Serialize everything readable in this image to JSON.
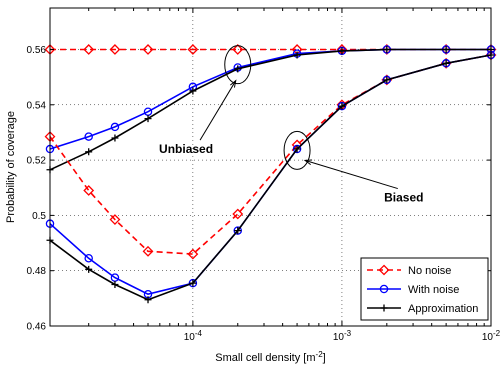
{
  "chart_data": {
    "type": "line",
    "xlabel_main": "Small cell density [m",
    "xlabel_sup": "-2",
    "xlabel_end": "]",
    "ylabel": "Probability of coverage",
    "xscale": "log",
    "xlim": [
      1.1e-05,
      0.01
    ],
    "ylim": [
      0.46,
      0.575
    ],
    "grid": true,
    "legend_position": "bottom-right",
    "y_ticks": [
      "0.46",
      "0.48",
      "0.5",
      "0.52",
      "0.54",
      "0.56"
    ],
    "y_tick_values": [
      0.46,
      0.48,
      0.5,
      0.52,
      0.54,
      0.56
    ],
    "x_ticks": [
      {
        "base": "10",
        "exp": "-4",
        "value": 0.0001
      },
      {
        "base": "10",
        "exp": "-3",
        "value": 0.001
      },
      {
        "base": "10",
        "exp": "-2",
        "value": 0.01
      }
    ],
    "x": [
      1.1e-05,
      2e-05,
      3e-05,
      5e-05,
      0.0001,
      0.0002,
      0.0005,
      0.001,
      0.002,
      0.005,
      0.01
    ],
    "series": [
      {
        "name": "No noise",
        "group": "unbiased",
        "color": "#ff0000",
        "dash": "6,4",
        "marker": "diamond",
        "legend": true,
        "values": [
          0.56,
          0.56,
          0.56,
          0.56,
          0.56,
          0.56,
          0.56,
          0.56,
          0.56,
          0.56,
          0.56
        ]
      },
      {
        "name": "With noise",
        "group": "unbiased",
        "color": "#0000ff",
        "dash": "",
        "marker": "circle",
        "legend": true,
        "values": [
          0.524,
          0.5285,
          0.532,
          0.5375,
          0.5465,
          0.5535,
          0.5585,
          0.5595,
          0.56,
          0.56,
          0.56
        ]
      },
      {
        "name": "Approximation",
        "group": "unbiased",
        "color": "#000000",
        "dash": "",
        "marker": "plus",
        "legend": true,
        "values": [
          0.5165,
          0.523,
          0.528,
          0.535,
          0.545,
          0.553,
          0.558,
          0.5595,
          0.56,
          0.56,
          0.56
        ]
      },
      {
        "name": "No noise",
        "group": "biased",
        "color": "#ff0000",
        "dash": "6,4",
        "marker": "diamond",
        "legend": false,
        "values": [
          0.5285,
          0.509,
          0.4985,
          0.487,
          0.486,
          0.5005,
          0.5255,
          0.54,
          0.549,
          0.555,
          0.558
        ]
      },
      {
        "name": "With noise",
        "group": "biased",
        "color": "#0000ff",
        "dash": "",
        "marker": "circle",
        "legend": false,
        "values": [
          0.497,
          0.4845,
          0.4775,
          0.4715,
          0.4755,
          0.4945,
          0.524,
          0.5395,
          0.549,
          0.555,
          0.558
        ]
      },
      {
        "name": "Approximation",
        "group": "biased",
        "color": "#000000",
        "dash": "",
        "marker": "plus",
        "legend": false,
        "values": [
          0.491,
          0.4805,
          0.475,
          0.4695,
          0.4755,
          0.4945,
          0.524,
          0.5395,
          0.549,
          0.555,
          0.558
        ]
      }
    ],
    "annotations": [
      {
        "text": "Unbiased",
        "ellipse_x": 0.0002,
        "ellipse_y": 0.5545,
        "label_x": 9e-05,
        "label_y": 0.5225
      },
      {
        "text": "Biased",
        "ellipse_x": 0.0005,
        "ellipse_y": 0.5235,
        "label_x": 0.0026,
        "label_y": 0.505
      }
    ]
  }
}
